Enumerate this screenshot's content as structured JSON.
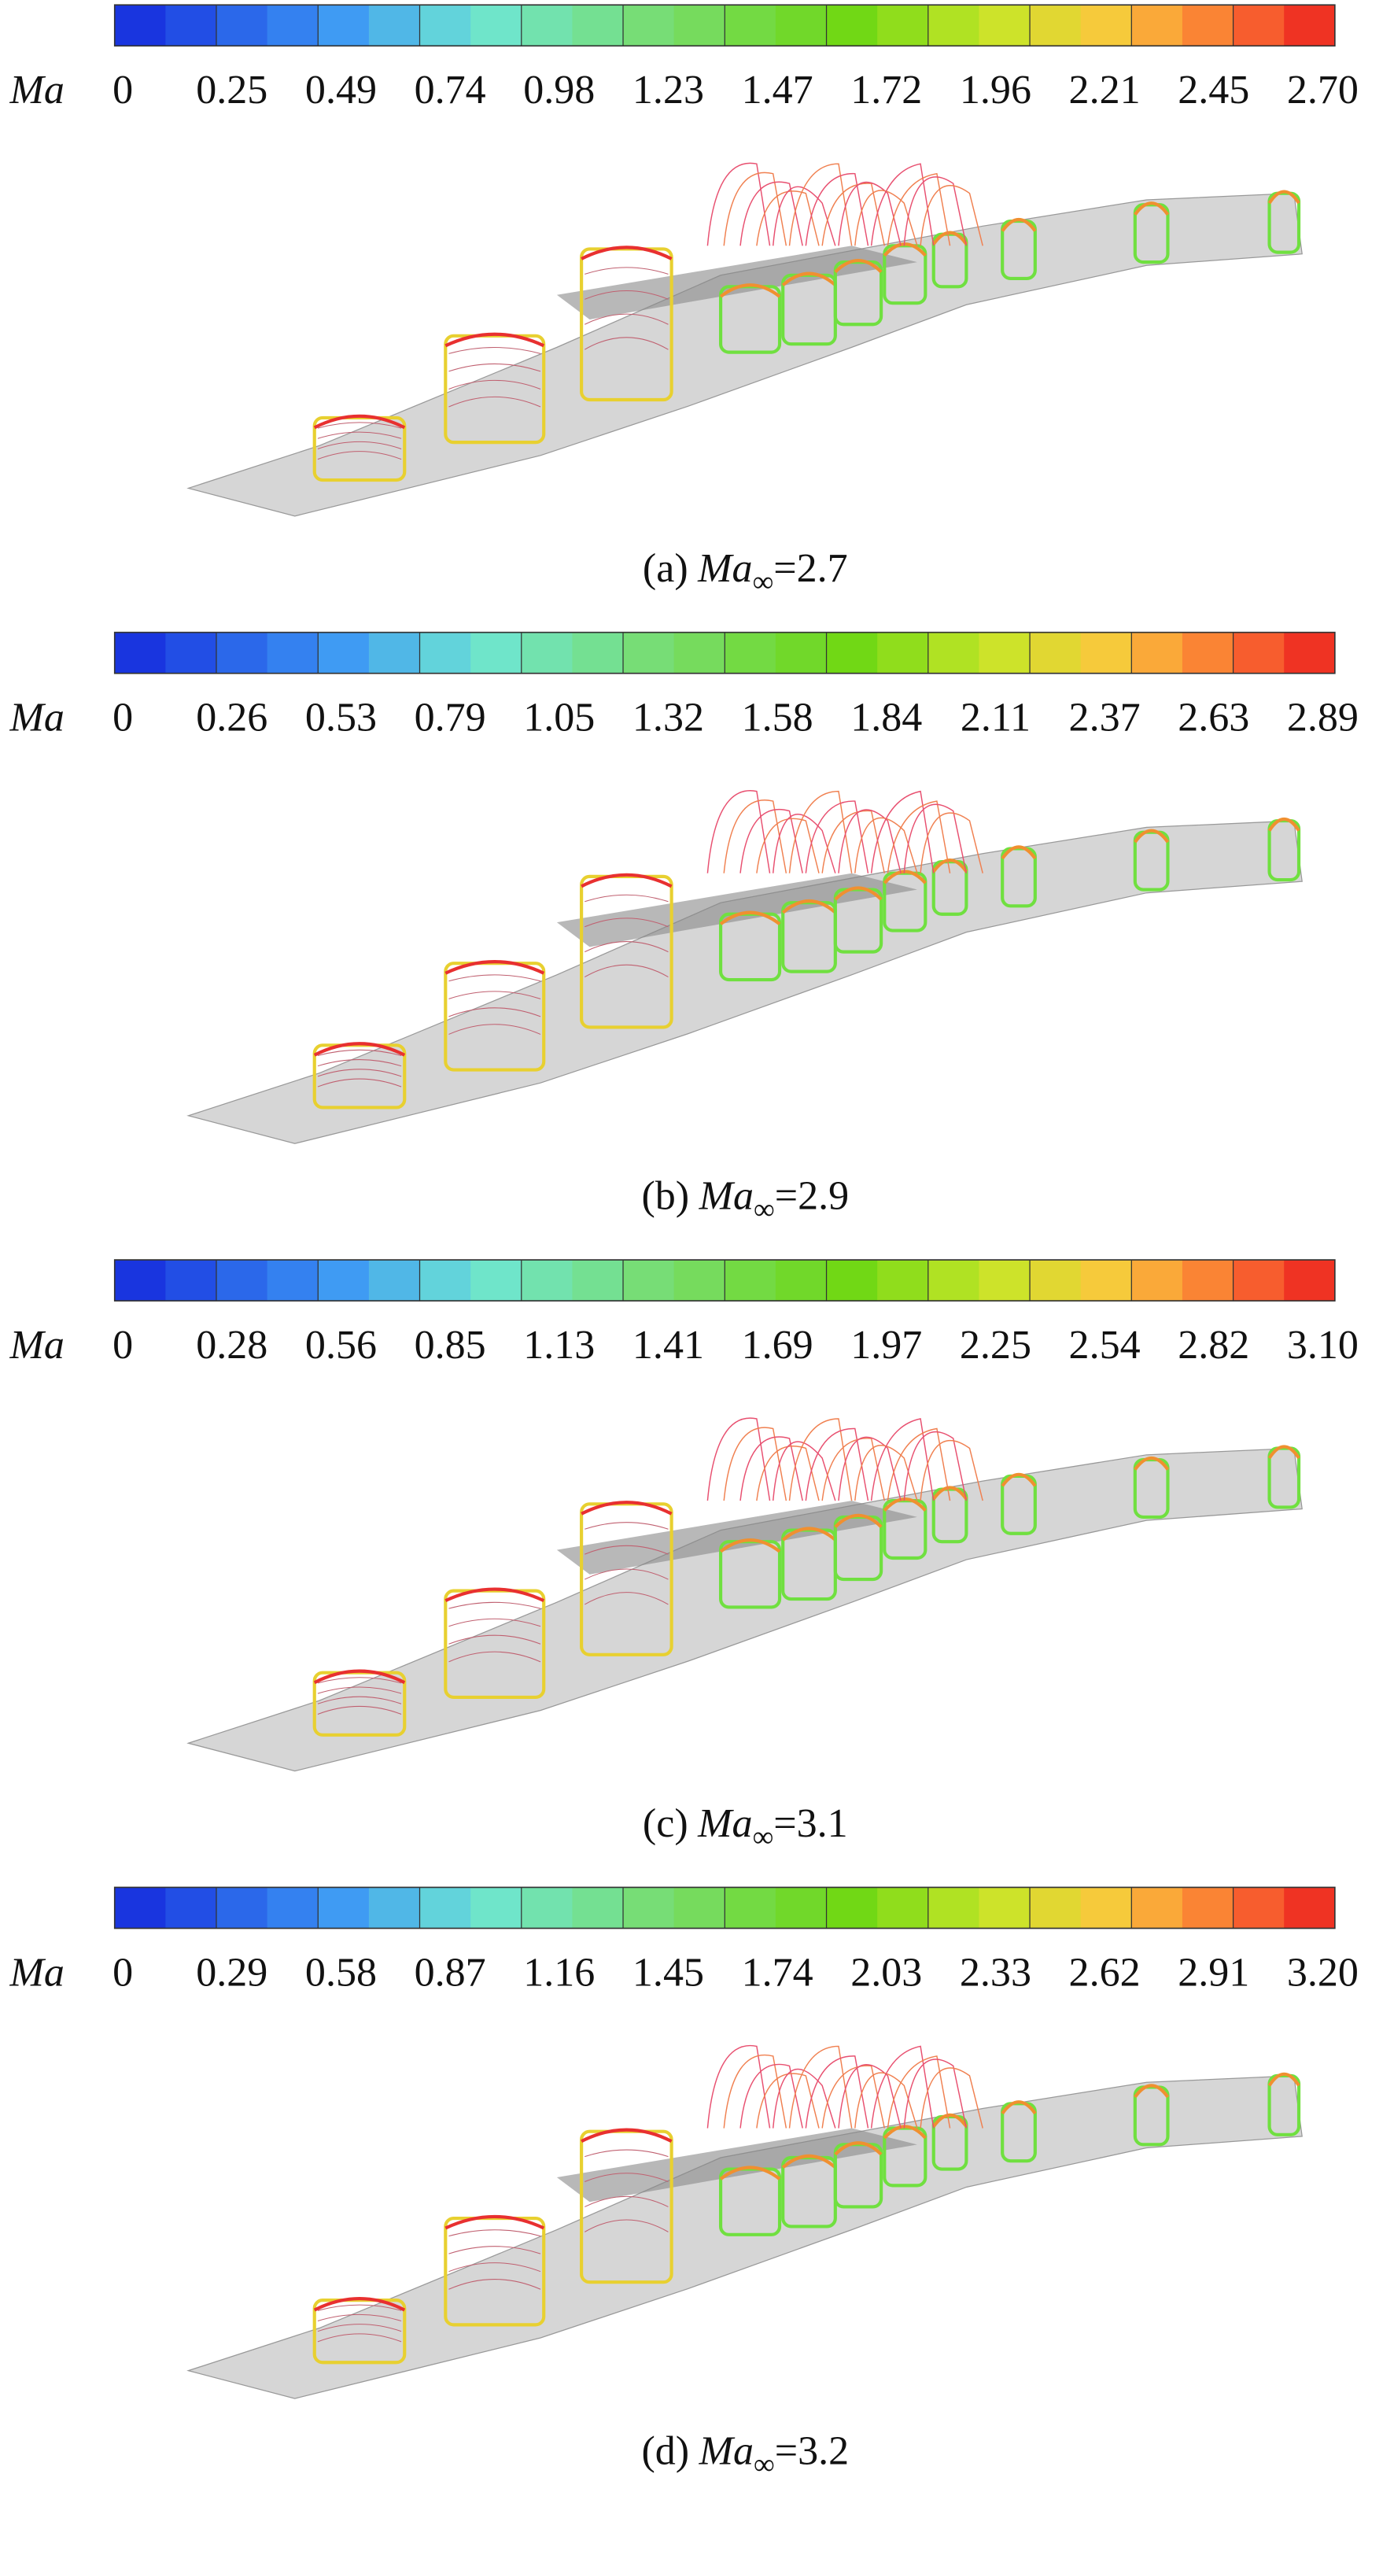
{
  "panels": [
    {
      "colorbar": {
        "label": "Ma",
        "ticks": [
          "0",
          "0.25",
          "0.49",
          "0.74",
          "0.98",
          "1.23",
          "1.47",
          "1.72",
          "1.96",
          "2.21",
          "2.45",
          "2.70"
        ]
      },
      "caption": {
        "prefix": "(a)",
        "symbol": "Ma",
        "subscript": "∞",
        "value": "=2.7"
      }
    },
    {
      "colorbar": {
        "label": "Ma",
        "ticks": [
          "0",
          "0.26",
          "0.53",
          "0.79",
          "1.05",
          "1.32",
          "1.58",
          "1.84",
          "2.11",
          "2.37",
          "2.63",
          "2.89"
        ]
      },
      "caption": {
        "prefix": "(b)",
        "symbol": "Ma",
        "subscript": "∞",
        "value": "=2.9"
      }
    },
    {
      "colorbar": {
        "label": "Ma",
        "ticks": [
          "0",
          "0.28",
          "0.56",
          "0.85",
          "1.13",
          "1.41",
          "1.69",
          "1.97",
          "2.25",
          "2.54",
          "2.82",
          "3.10"
        ]
      },
      "caption": {
        "prefix": "(c)",
        "symbol": "Ma",
        "subscript": "∞",
        "value": "=3.1"
      }
    },
    {
      "colorbar": {
        "label": "Ma",
        "ticks": [
          "0",
          "0.29",
          "0.58",
          "0.87",
          "1.16",
          "1.45",
          "1.74",
          "2.03",
          "2.33",
          "2.62",
          "2.91",
          "3.20"
        ]
      },
      "caption": {
        "prefix": "(d)",
        "symbol": "Ma",
        "subscript": "∞",
        "value": "=3.2"
      }
    }
  ]
}
